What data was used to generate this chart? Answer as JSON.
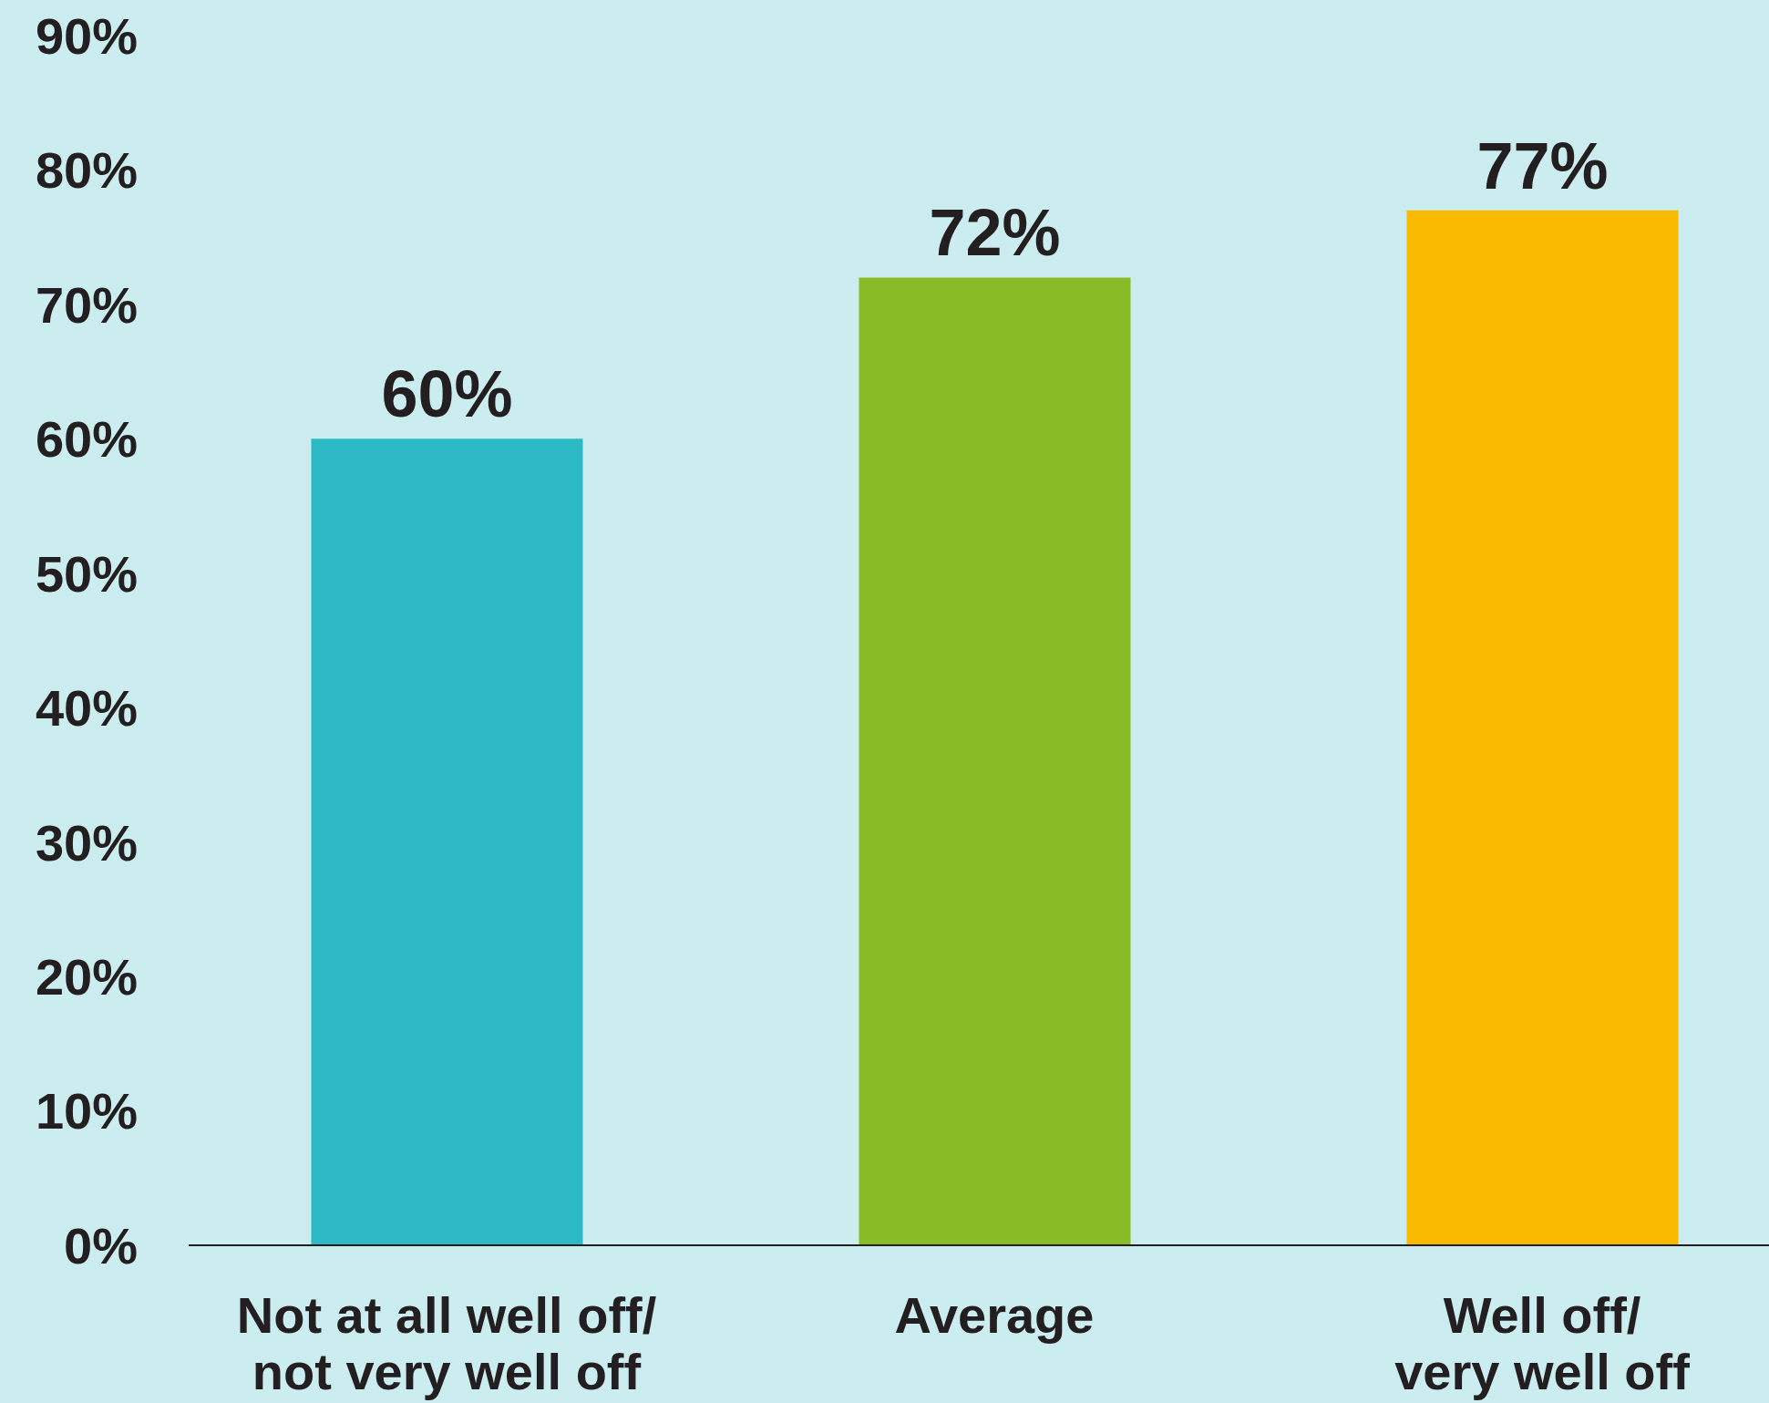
{
  "chart_data": {
    "type": "bar",
    "categories": [
      "Not at all well off/\nnot very well off",
      "Average",
      "Well off/\nvery well off"
    ],
    "values": [
      60,
      72,
      77
    ],
    "colors": [
      "#2cb8c5",
      "#87bc26",
      "#f9b900"
    ],
    "value_labels": [
      "60%",
      "72%",
      "77%"
    ],
    "ylim": [
      0,
      90
    ],
    "yticks": [
      {
        "value": 0,
        "label": "0%"
      },
      {
        "value": 10,
        "label": "10%"
      },
      {
        "value": 20,
        "label": "20%"
      },
      {
        "value": 30,
        "label": "30%"
      },
      {
        "value": 40,
        "label": "40%"
      },
      {
        "value": 50,
        "label": "50%"
      },
      {
        "value": 60,
        "label": "60%"
      },
      {
        "value": 70,
        "label": "70%"
      },
      {
        "value": 80,
        "label": "80%"
      },
      {
        "value": 90,
        "label": "90%"
      }
    ]
  }
}
